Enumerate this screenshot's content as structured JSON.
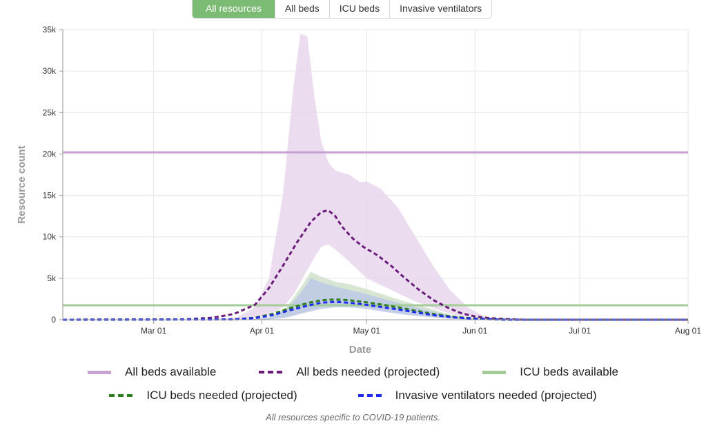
{
  "tabs": [
    {
      "label": "All resources",
      "active": true
    },
    {
      "label": "All beds",
      "active": false
    },
    {
      "label": "ICU beds",
      "active": false
    },
    {
      "label": "Invasive ventilators",
      "active": false
    }
  ],
  "caption": "All resources specific to COVID-19 patients.",
  "legend": [
    {
      "label": "All beds available",
      "color": "#c9a0d3",
      "style": "solid"
    },
    {
      "label": "All beds needed (projected)",
      "color": "#6a1b7a",
      "style": "dashed"
    },
    {
      "label": "ICU beds available",
      "color": "#a3cc99",
      "style": "solid"
    },
    {
      "label": "ICU beds needed (projected)",
      "color": "#2e7d1e",
      "style": "dashed"
    },
    {
      "label": "Invasive ventilators needed (projected)",
      "color": "#1f2bf0",
      "style": "dashed"
    }
  ],
  "chart_data": {
    "type": "line",
    "xlabel": "Date",
    "ylabel": "Resource count",
    "x_range": [
      "2020-02-04",
      "2020-08-01"
    ],
    "ylim": [
      0,
      35000
    ],
    "x_ticks": [
      {
        "date": "2020-03-01",
        "label": "Mar 01"
      },
      {
        "date": "2020-04-01",
        "label": "Apr 01"
      },
      {
        "date": "2020-05-01",
        "label": "May 01"
      },
      {
        "date": "2020-06-01",
        "label": "Jun 01"
      },
      {
        "date": "2020-07-01",
        "label": "Jul 01"
      },
      {
        "date": "2020-08-01",
        "label": "Aug 01"
      }
    ],
    "y_ticks": [
      {
        "value": 0,
        "label": "0"
      },
      {
        "value": 5000,
        "label": "5k"
      },
      {
        "value": 10000,
        "label": "10k"
      },
      {
        "value": 15000,
        "label": "15k"
      },
      {
        "value": 20000,
        "label": "20k"
      },
      {
        "value": 25000,
        "label": "25k"
      },
      {
        "value": 30000,
        "label": "30k"
      },
      {
        "value": 35000,
        "label": "35k"
      }
    ],
    "grid": true,
    "capacity_lines": [
      {
        "name": "All beds available",
        "value": 20200,
        "color": "#c9a0d3"
      },
      {
        "name": "ICU beds available",
        "value": 1750,
        "color": "#a3cc99"
      }
    ],
    "bands": [
      {
        "name": "All beds needed uncertainty",
        "color": "#e7d6ec",
        "x": [
          "2020-03-20",
          "2020-03-25",
          "2020-03-30",
          "2020-04-03",
          "2020-04-07",
          "2020-04-10",
          "2020-04-12",
          "2020-04-14",
          "2020-04-16",
          "2020-04-18",
          "2020-04-20",
          "2020-04-22",
          "2020-04-26",
          "2020-04-29",
          "2020-05-01",
          "2020-05-05",
          "2020-05-10",
          "2020-05-15",
          "2020-05-20",
          "2020-05-25",
          "2020-05-30",
          "2020-06-04",
          "2020-06-10"
        ],
        "upper": [
          0,
          300,
          1500,
          5000,
          15000,
          28000,
          34500,
          34200,
          27000,
          21500,
          19000,
          18000,
          17500,
          16600,
          16700,
          15800,
          13500,
          10000,
          6500,
          3500,
          1500,
          300,
          0
        ],
        "lower": [
          0,
          0,
          100,
          500,
          1500,
          3000,
          4500,
          6000,
          7500,
          8800,
          9100,
          8500,
          7000,
          5800,
          5000,
          4200,
          3200,
          2200,
          1400,
          700,
          300,
          0,
          0
        ]
      },
      {
        "name": "ICU beds needed uncertainty",
        "color": "#c5dcc0",
        "x": [
          "2020-03-28",
          "2020-04-03",
          "2020-04-08",
          "2020-04-12",
          "2020-04-15",
          "2020-04-18",
          "2020-04-22",
          "2020-04-26",
          "2020-05-01",
          "2020-05-06",
          "2020-05-12",
          "2020-05-18",
          "2020-05-25",
          "2020-06-01"
        ],
        "upper": [
          0,
          300,
          1500,
          3800,
          5800,
          5200,
          4600,
          4300,
          3700,
          3000,
          2200,
          1500,
          600,
          0
        ],
        "lower": [
          0,
          50,
          300,
          800,
          1100,
          1500,
          1700,
          1700,
          1500,
          1100,
          700,
          400,
          150,
          0
        ]
      },
      {
        "name": "Invasive ventilators needed uncertainty",
        "color": "#b8c2ea",
        "x": [
          "2020-03-28",
          "2020-04-03",
          "2020-04-08",
          "2020-04-12",
          "2020-04-15",
          "2020-04-18",
          "2020-04-22",
          "2020-04-26",
          "2020-05-01",
          "2020-05-06",
          "2020-05-12",
          "2020-05-18",
          "2020-05-25",
          "2020-06-01"
        ],
        "upper": [
          0,
          250,
          1200,
          3200,
          5000,
          4500,
          4000,
          3600,
          3100,
          2500,
          1800,
          1200,
          500,
          0
        ],
        "lower": [
          0,
          40,
          250,
          700,
          1000,
          1300,
          1500,
          1500,
          1300,
          950,
          600,
          350,
          120,
          0
        ]
      }
    ],
    "series": [
      {
        "name": "All beds needed (projected)",
        "color": "#6a1b7a",
        "x": [
          "2020-02-04",
          "2020-03-10",
          "2020-03-18",
          "2020-03-24",
          "2020-03-30",
          "2020-04-03",
          "2020-04-07",
          "2020-04-11",
          "2020-04-15",
          "2020-04-18",
          "2020-04-20",
          "2020-04-22",
          "2020-04-24",
          "2020-04-27",
          "2020-04-30",
          "2020-05-04",
          "2020-05-08",
          "2020-05-12",
          "2020-05-16",
          "2020-05-20",
          "2020-05-24",
          "2020-05-28",
          "2020-06-01",
          "2020-06-05",
          "2020-06-10",
          "2020-06-15",
          "2020-08-01"
        ],
        "y": [
          0,
          50,
          250,
          700,
          1800,
          3800,
          6500,
          9300,
          11800,
          13000,
          13200,
          12500,
          11200,
          9800,
          8800,
          7800,
          6500,
          5000,
          3600,
          2400,
          1500,
          800,
          400,
          200,
          80,
          0,
          0
        ]
      },
      {
        "name": "ICU beds needed (projected)",
        "color": "#2e7d1e",
        "x": [
          "2020-02-04",
          "2020-03-24",
          "2020-03-30",
          "2020-04-04",
          "2020-04-09",
          "2020-04-14",
          "2020-04-18",
          "2020-04-22",
          "2020-04-26",
          "2020-04-30",
          "2020-05-05",
          "2020-05-10",
          "2020-05-15",
          "2020-05-20",
          "2020-05-26",
          "2020-06-01",
          "2020-06-10",
          "2020-08-01"
        ],
        "y": [
          0,
          50,
          250,
          700,
          1400,
          2000,
          2350,
          2450,
          2350,
          2150,
          1850,
          1500,
          1100,
          700,
          350,
          150,
          0,
          0
        ]
      },
      {
        "name": "Invasive ventilators needed (projected)",
        "color": "#1f2bf0",
        "x": [
          "2020-02-04",
          "2020-03-24",
          "2020-03-30",
          "2020-04-04",
          "2020-04-09",
          "2020-04-14",
          "2020-04-18",
          "2020-04-22",
          "2020-04-26",
          "2020-04-30",
          "2020-05-05",
          "2020-05-10",
          "2020-05-15",
          "2020-05-20",
          "2020-05-26",
          "2020-06-01",
          "2020-06-10",
          "2020-08-01"
        ],
        "y": [
          0,
          40,
          200,
          550,
          1150,
          1700,
          2050,
          2150,
          2050,
          1850,
          1550,
          1250,
          900,
          550,
          280,
          120,
          0,
          0
        ]
      }
    ]
  }
}
